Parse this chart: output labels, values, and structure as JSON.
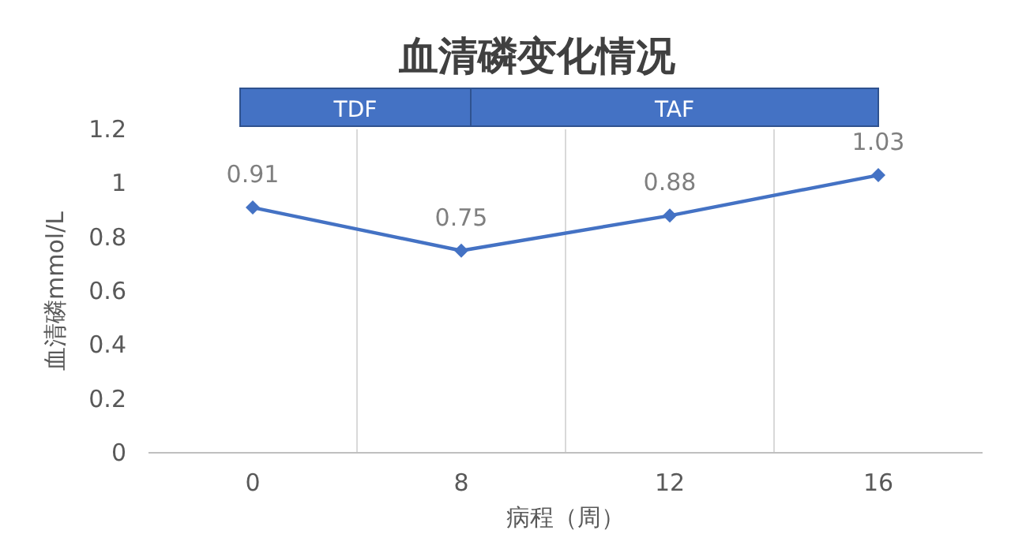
{
  "chart_data": {
    "type": "line",
    "title": "血清磷变化情况",
    "xlabel": "病程（周）",
    "ylabel": "血清磷mmol/L",
    "categories": [
      "0",
      "8",
      "12",
      "16"
    ],
    "series": [
      {
        "color": "#4472c4",
        "values": [
          0.91,
          0.75,
          0.88,
          1.03
        ]
      }
    ],
    "ylim": [
      0,
      1.2
    ],
    "yticks": [
      0,
      0.2,
      0.4,
      0.6,
      0.8,
      1,
      1.2
    ],
    "annotations": [
      "TDF",
      "TAF"
    ],
    "data_labels": true,
    "grid": "x",
    "marker": "diamond",
    "line_style": "solid"
  }
}
